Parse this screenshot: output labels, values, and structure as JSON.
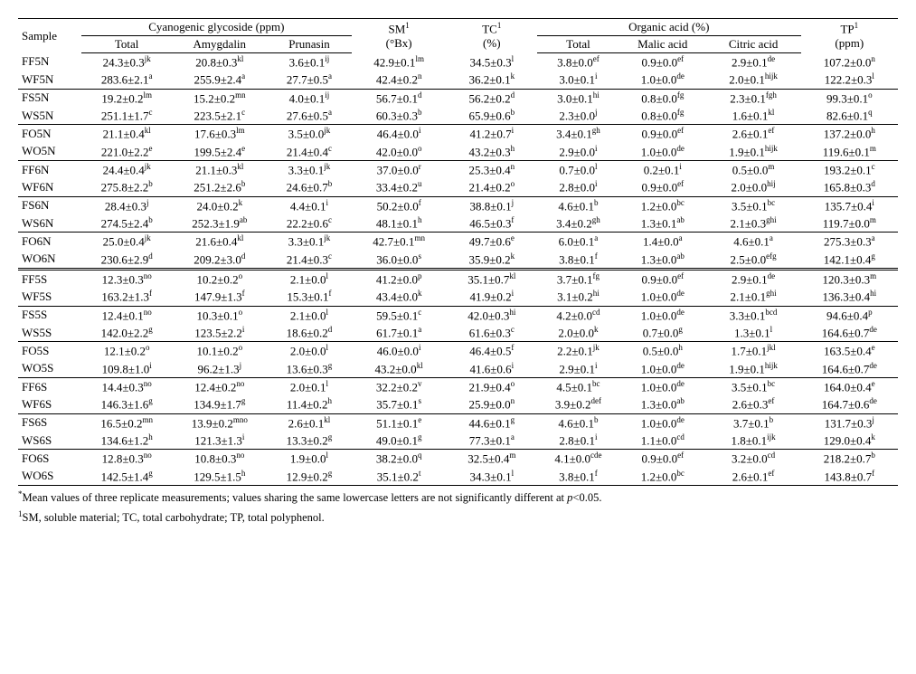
{
  "header": {
    "sample": "Sample",
    "cg_group": "Cyanogenic glycoside (ppm)",
    "sm": "SM",
    "sm_sup": "1",
    "sm_unit": "(°Bx)",
    "tc": "TC",
    "tc_sup": "1",
    "tc_unit": "(%)",
    "oa_group": "Organic acid (%)",
    "tp": "TP",
    "tp_sup": "1",
    "tp_unit": "(ppm)",
    "sub": {
      "total": "Total",
      "amyg": "Amygdalin",
      "prun": "Prunasin",
      "ototal": "Total",
      "malic": "Malic acid",
      "citric": "Citric acid"
    }
  },
  "footnotes": {
    "a": "Mean values of three replicate measurements; values sharing the same lowercase letters are not significantly different at ",
    "a_p": "p",
    "a_tail": "<0.05.",
    "b": "SM, soluble material; TC, total carbohydrate; TP, total polyphenol."
  },
  "rows": [
    {
      "s": "FF5N",
      "cg_t": "24.3±0.3",
      "cg_t_s": "jk",
      "amy": "20.8±0.3",
      "amy_s": "kl",
      "pru": "3.6±0.1",
      "pru_s": "ij",
      "sm": "42.9±0.1",
      "sm_s": "lm",
      "tc": "34.5±0.3",
      "tc_s": "l",
      "ot": "3.8±0.0",
      "ot_s": "ef",
      "mal": "0.9±0.0",
      "mal_s": "ef",
      "cit": "2.9±0.1",
      "cit_s": "de",
      "tp": "107.2±0.0",
      "tp_s": "n"
    },
    {
      "s": "WF5N",
      "cg_t": "283.6±2.1",
      "cg_t_s": "a",
      "amy": "255.9±2.4",
      "amy_s": "a",
      "pru": "27.7±0.5",
      "pru_s": "a",
      "sm": "42.4±0.2",
      "sm_s": "n",
      "tc": "36.2±0.1",
      "tc_s": "k",
      "ot": "3.0±0.1",
      "ot_s": "i",
      "mal": "1.0±0.0",
      "mal_s": "de",
      "cit": "2.0±0.1",
      "cit_s": "hijk",
      "tp": "122.2±0.3",
      "tp_s": "l",
      "sep": true
    },
    {
      "s": "FS5N",
      "cg_t": "19.2±0.2",
      "cg_t_s": "lm",
      "amy": "15.2±0.2",
      "amy_s": "mn",
      "pru": "4.0±0.1",
      "pru_s": "ij",
      "sm": "56.7±0.1",
      "sm_s": "d",
      "tc": "56.2±0.2",
      "tc_s": "d",
      "ot": "3.0±0.1",
      "ot_s": "hi",
      "mal": "0.8±0.0",
      "mal_s": "fg",
      "cit": "2.3±0.1",
      "cit_s": "fgh",
      "tp": "99.3±0.1",
      "tp_s": "o"
    },
    {
      "s": "WS5N",
      "cg_t": "251.1±1.7",
      "cg_t_s": "c",
      "amy": "223.5±2.1",
      "amy_s": "c",
      "pru": "27.6±0.5",
      "pru_s": "a",
      "sm": "60.3±0.3",
      "sm_s": "b",
      "tc": "65.9±0.6",
      "tc_s": "b",
      "ot": "2.3±0.0",
      "ot_s": "j",
      "mal": "0.8±0.0",
      "mal_s": "fg",
      "cit": "1.6±0.1",
      "cit_s": "kl",
      "tp": "82.6±0.1",
      "tp_s": "q",
      "sep": true
    },
    {
      "s": "FO5N",
      "cg_t": "21.1±0.4",
      "cg_t_s": "kl",
      "amy": "17.6±0.3",
      "amy_s": "lm",
      "pru": "3.5±0.0",
      "pru_s": "jk",
      "sm": "46.4±0.0",
      "sm_s": "i",
      "tc": "41.2±0.7",
      "tc_s": "i",
      "ot": "3.4±0.1",
      "ot_s": "gh",
      "mal": "0.9±0.0",
      "mal_s": "ef",
      "cit": "2.6±0.1",
      "cit_s": "ef",
      "tp": "137.2±0.0",
      "tp_s": "h"
    },
    {
      "s": "WO5N",
      "cg_t": "221.0±2.2",
      "cg_t_s": "e",
      "amy": "199.5±2.4",
      "amy_s": "e",
      "pru": "21.4±0.4",
      "pru_s": "c",
      "sm": "42.0±0.0",
      "sm_s": "o",
      "tc": "43.2±0.3",
      "tc_s": "h",
      "ot": "2.9±0.0",
      "ot_s": "i",
      "mal": "1.0±0.0",
      "mal_s": "de",
      "cit": "1.9±0.1",
      "cit_s": "hijk",
      "tp": "119.6±0.1",
      "tp_s": "m",
      "sep": true
    },
    {
      "s": "FF6N",
      "cg_t": "24.4±0.4",
      "cg_t_s": "jk",
      "amy": "21.1±0.3",
      "amy_s": "kl",
      "pru": "3.3±0.1",
      "pru_s": "jk",
      "sm": "37.0±0.0",
      "sm_s": "r",
      "tc": "25.3±0.4",
      "tc_s": "n",
      "ot": "0.7±0.0",
      "ot_s": "l",
      "mal": "0.2±0.1",
      "mal_s": "i",
      "cit": "0.5±0.0",
      "cit_s": "m",
      "tp": "193.2±0.1",
      "tp_s": "c"
    },
    {
      "s": "WF6N",
      "cg_t": "275.8±2.2",
      "cg_t_s": "b",
      "amy": "251.2±2.6",
      "amy_s": "b",
      "pru": "24.6±0.7",
      "pru_s": "b",
      "sm": "33.4±0.2",
      "sm_s": "u",
      "tc": "21.4±0.2",
      "tc_s": "o",
      "ot": "2.8±0.0",
      "ot_s": "i",
      "mal": "0.9±0.0",
      "mal_s": "ef",
      "cit": "2.0±0.0",
      "cit_s": "hij",
      "tp": "165.8±0.3",
      "tp_s": "d",
      "sep": true
    },
    {
      "s": "FS6N",
      "cg_t": "28.4±0.3",
      "cg_t_s": "j",
      "amy": "24.0±0.2",
      "amy_s": "k",
      "pru": "4.4±0.1",
      "pru_s": "i",
      "sm": "50.2±0.0",
      "sm_s": "f",
      "tc": "38.8±0.1",
      "tc_s": "j",
      "ot": "4.6±0.1",
      "ot_s": "b",
      "mal": "1.2±0.0",
      "mal_s": "bc",
      "cit": "3.5±0.1",
      "cit_s": "bc",
      "tp": "135.7±0.4",
      "tp_s": "i"
    },
    {
      "s": "WS6N",
      "cg_t": "274.5±2.4",
      "cg_t_s": "b",
      "amy": "252.3±1.9",
      "amy_s": "ab",
      "pru": "22.2±0.6",
      "pru_s": "c",
      "sm": "48.1±0.1",
      "sm_s": "h",
      "tc": "46.5±0.3",
      "tc_s": "f",
      "ot": "3.4±0.2",
      "ot_s": "gh",
      "mal": "1.3±0.1",
      "mal_s": "ab",
      "cit": "2.1±0.3",
      "cit_s": "ghi",
      "tp": "119.7±0.0",
      "tp_s": "m",
      "sep": true
    },
    {
      "s": "FO6N",
      "cg_t": "25.0±0.4",
      "cg_t_s": "jk",
      "amy": "21.6±0.4",
      "amy_s": "kl",
      "pru": "3.3±0.1",
      "pru_s": "jk",
      "sm": "42.7±0.1",
      "sm_s": "mn",
      "tc": "49.7±0.6",
      "tc_s": "e",
      "ot": "6.0±0.1",
      "ot_s": "a",
      "mal": "1.4±0.0",
      "mal_s": "a",
      "cit": "4.6±0.1",
      "cit_s": "a",
      "tp": "275.3±0.3",
      "tp_s": "a"
    },
    {
      "s": "WO6N",
      "cg_t": "230.6±2.9",
      "cg_t_s": "d",
      "amy": "209.2±3.0",
      "amy_s": "d",
      "pru": "21.4±0.3",
      "pru_s": "c",
      "sm": "36.0±0.0",
      "sm_s": "s",
      "tc": "35.9±0.2",
      "tc_s": "k",
      "ot": "3.8±0.1",
      "ot_s": "f",
      "mal": "1.3±0.0",
      "mal_s": "ab",
      "cit": "2.5±0.0",
      "cit_s": "efg",
      "tp": "142.1±0.4",
      "tp_s": "g",
      "dbl": true
    },
    {
      "s": "FF5S",
      "cg_t": "12.3±0.3",
      "cg_t_s": "no",
      "amy": "10.2±0.2",
      "amy_s": "o",
      "pru": "2.1±0.0",
      "pru_s": "l",
      "sm": "41.2±0.0",
      "sm_s": "p",
      "tc": "35.1±0.7",
      "tc_s": "kl",
      "ot": "3.7±0.1",
      "ot_s": "fg",
      "mal": "0.9±0.0",
      "mal_s": "ef",
      "cit": "2.9±0.1",
      "cit_s": "de",
      "tp": "120.3±0.3",
      "tp_s": "m"
    },
    {
      "s": "WF5S",
      "cg_t": "163.2±1.3",
      "cg_t_s": "f",
      "amy": "147.9±1.3",
      "amy_s": "f",
      "pru": "15.3±0.1",
      "pru_s": "f",
      "sm": "43.4±0.0",
      "sm_s": "k",
      "tc": "41.9±0.2",
      "tc_s": "i",
      "ot": "3.1±0.2",
      "ot_s": "hi",
      "mal": "1.0±0.0",
      "mal_s": "de",
      "cit": "2.1±0.1",
      "cit_s": "ghi",
      "tp": "136.3±0.4",
      "tp_s": "hi",
      "sep": true
    },
    {
      "s": "FS5S",
      "cg_t": "12.4±0.1",
      "cg_t_s": "no",
      "amy": "10.3±0.1",
      "amy_s": "o",
      "pru": "2.1±0.0",
      "pru_s": "l",
      "sm": "59.5±0.1",
      "sm_s": "c",
      "tc": "42.0±0.3",
      "tc_s": "hi",
      "ot": "4.2±0.0",
      "ot_s": "cd",
      "mal": "1.0±0.0",
      "mal_s": "de",
      "cit": "3.3±0.1",
      "cit_s": "bcd",
      "tp": "94.6±0.4",
      "tp_s": "p"
    },
    {
      "s": "WS5S",
      "cg_t": "142.0±2.2",
      "cg_t_s": "g",
      "amy": "123.5±2.2",
      "amy_s": "i",
      "pru": "18.6±0.2",
      "pru_s": "d",
      "sm": "61.7±0.1",
      "sm_s": "a",
      "tc": "61.6±0.3",
      "tc_s": "c",
      "ot": "2.0±0.0",
      "ot_s": "k",
      "mal": "0.7±0.0",
      "mal_s": "g",
      "cit": "1.3±0.1",
      "cit_s": "l",
      "tp": "164.6±0.7",
      "tp_s": "de",
      "sep": true
    },
    {
      "s": "FO5S",
      "cg_t": "12.1±0.2",
      "cg_t_s": "o",
      "amy": "10.1±0.2",
      "amy_s": "o",
      "pru": "2.0±0.0",
      "pru_s": "l",
      "sm": "46.0±0.0",
      "sm_s": "i",
      "tc": "46.4±0.5",
      "tc_s": "f",
      "ot": "2.2±0.1",
      "ot_s": "jk",
      "mal": "0.5±0.0",
      "mal_s": "h",
      "cit": "1.7±0.1",
      "cit_s": "jkl",
      "tp": "163.5±0.4",
      "tp_s": "e"
    },
    {
      "s": "WO5S",
      "cg_t": "109.8±1.0",
      "cg_t_s": "i",
      "amy": "96.2±1.3",
      "amy_s": "j",
      "pru": "13.6±0.3",
      "pru_s": "g",
      "sm": "43.2±0.0",
      "sm_s": "kl",
      "tc": "41.6±0.6",
      "tc_s": "i",
      "ot": "2.9±0.1",
      "ot_s": "i",
      "mal": "1.0±0.0",
      "mal_s": "de",
      "cit": "1.9±0.1",
      "cit_s": "hijk",
      "tp": "164.6±0.7",
      "tp_s": "de",
      "sep": true
    },
    {
      "s": "FF6S",
      "cg_t": "14.4±0.3",
      "cg_t_s": "no",
      "amy": "12.4±0.2",
      "amy_s": "no",
      "pru": "2.0±0.1",
      "pru_s": "l",
      "sm": "32.2±0.2",
      "sm_s": "v",
      "tc": "21.9±0.4",
      "tc_s": "o",
      "ot": "4.5±0.1",
      "ot_s": "bc",
      "mal": "1.0±0.0",
      "mal_s": "de",
      "cit": "3.5±0.1",
      "cit_s": "bc",
      "tp": "164.0±0.4",
      "tp_s": "e"
    },
    {
      "s": "WF6S",
      "cg_t": "146.3±1.6",
      "cg_t_s": "g",
      "amy": "134.9±1.7",
      "amy_s": "g",
      "pru": "11.4±0.2",
      "pru_s": "h",
      "sm": "35.7±0.1",
      "sm_s": "s",
      "tc": "25.9±0.0",
      "tc_s": "n",
      "ot": "3.9±0.2",
      "ot_s": "def",
      "mal": "1.3±0.0",
      "mal_s": "ab",
      "cit": "2.6±0.3",
      "cit_s": "ef",
      "tp": "164.7±0.6",
      "tp_s": "de",
      "sep": true
    },
    {
      "s": "FS6S",
      "cg_t": "16.5±0.2",
      "cg_t_s": "mn",
      "amy": "13.9±0.2",
      "amy_s": "mno",
      "pru": "2.6±0.1",
      "pru_s": "kl",
      "sm": "51.1±0.1",
      "sm_s": "e",
      "tc": "44.6±0.1",
      "tc_s": "g",
      "ot": "4.6±0.1",
      "ot_s": "b",
      "mal": "1.0±0.0",
      "mal_s": "de",
      "cit": "3.7±0.1",
      "cit_s": "b",
      "tp": "131.7±0.3",
      "tp_s": "j"
    },
    {
      "s": "WS6S",
      "cg_t": "134.6±1.2",
      "cg_t_s": "h",
      "amy": "121.3±1.3",
      "amy_s": "i",
      "pru": "13.3±0.2",
      "pru_s": "g",
      "sm": "49.0±0.1",
      "sm_s": "g",
      "tc": "77.3±0.1",
      "tc_s": "a",
      "ot": "2.8±0.1",
      "ot_s": "i",
      "mal": "1.1±0.0",
      "mal_s": "cd",
      "cit": "1.8±0.1",
      "cit_s": "ijk",
      "tp": "129.0±0.4",
      "tp_s": "k",
      "sep": true
    },
    {
      "s": "FO6S",
      "cg_t": "12.8±0.3",
      "cg_t_s": "no",
      "amy": "10.8±0.3",
      "amy_s": "no",
      "pru": "1.9±0.0",
      "pru_s": "l",
      "sm": "38.2±0.0",
      "sm_s": "q",
      "tc": "32.5±0.4",
      "tc_s": "m",
      "ot": "4.1±0.0",
      "ot_s": "cde",
      "mal": "0.9±0.0",
      "mal_s": "ef",
      "cit": "3.2±0.0",
      "cit_s": "cd",
      "tp": "218.2±0.7",
      "tp_s": "b"
    },
    {
      "s": "WO6S",
      "cg_t": "142.5±1.4",
      "cg_t_s": "g",
      "amy": "129.5±1.5",
      "amy_s": "h",
      "pru": "12.9±0.2",
      "pru_s": "g",
      "sm": "35.1±0.2",
      "sm_s": "t",
      "tc": "34.3±0.1",
      "tc_s": "l",
      "ot": "3.8±0.1",
      "ot_s": "f",
      "mal": "1.2±0.0",
      "mal_s": "bc",
      "cit": "2.6±0.1",
      "cit_s": "ef",
      "tp": "143.8±0.7",
      "tp_s": "f",
      "end": true
    }
  ]
}
